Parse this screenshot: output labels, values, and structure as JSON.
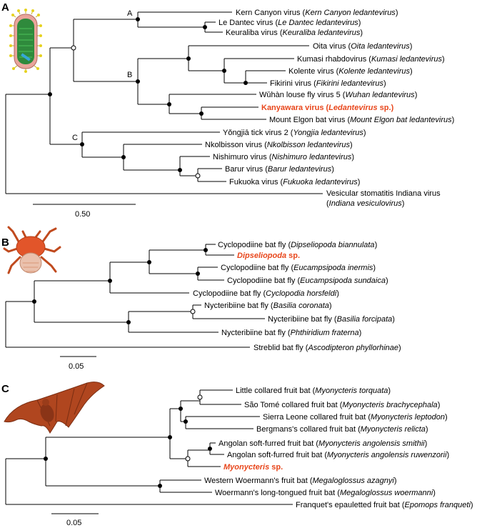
{
  "panels": [
    {
      "letter": "A",
      "illustration": "virion-icon",
      "scale_label": "0.50",
      "node_labels": [
        "A",
        "B",
        "C"
      ],
      "taxa": [
        {
          "common": "Kern Canyon virus",
          "sci": "Kern Canyon ledantevirus"
        },
        {
          "common": "Le Dantec virus",
          "sci": "Le Dantec ledantevirus"
        },
        {
          "common": "Keuraliba virus",
          "sci": "Keuraliba ledantevirus"
        },
        {
          "common": "Oita virus",
          "sci": "Oita ledantevirus"
        },
        {
          "common": "Kumasi rhabdovirus",
          "sci": "Kumasi ledantevirus"
        },
        {
          "common": "Kolente virus",
          "sci": "Kolente ledantevirus"
        },
        {
          "common": "Fikirini virus",
          "sci": "Fikirini ledantevirus"
        },
        {
          "common": "Wǔhàn louse fly virus 5",
          "sci": "Wuhan ledantevirus"
        },
        {
          "red": "Kanyawara virus (",
          "red_italic": "Ledantevirus",
          "red_tail": " sp.)",
          "highlight": true
        },
        {
          "common": "Mount Elgon bat virus",
          "sci": "Mount Elgon bat ledantevirus"
        },
        {
          "common": "Yǒngjiā tick virus 2",
          "sci": "Yongjia ledantevirus"
        },
        {
          "common": "Nkolbisson virus",
          "sci": "Nkolbisson ledantevirus"
        },
        {
          "common": "Nishimuro virus",
          "sci": "Nishimuro ledantevirus"
        },
        {
          "common": "Barur virus",
          "sci": "Barur ledantevirus"
        },
        {
          "common": "Fukuoka virus",
          "sci": "Fukuoka ledantevirus"
        },
        {
          "common": "Vesicular stomatitis Indiana virus",
          "sci": "Indiana vesiculovirus",
          "two_line": true
        }
      ]
    },
    {
      "letter": "B",
      "illustration": "bat-fly-icon",
      "scale_label": "0.05",
      "taxa": [
        {
          "common": "Cyclopodiine bat fly",
          "sci": "Dipseliopoda biannulata"
        },
        {
          "red_italic": "Dipseliopoda",
          "red_tail": " sp.",
          "highlight": true
        },
        {
          "common": "Cyclopodiine bat fly",
          "sci": "Eucampsipoda inermis"
        },
        {
          "common": "Cyclopodiine bat fly",
          "sci": "Eucampsipoda sundaica"
        },
        {
          "common": "Cyclopodiine bat fly",
          "sci": "Cyclopodia horsfeldi"
        },
        {
          "common": "Nycteribiine bat fly",
          "sci": "Basilia coronata"
        },
        {
          "common": "Nycteribiine bat fly",
          "sci": "Basilia forcipata"
        },
        {
          "common": "Nycteribiine bat fly",
          "sci": "Phthiridium fraterna"
        },
        {
          "common": "Streblid bat fly",
          "sci": "Ascodipteron phyllorhinae"
        }
      ]
    },
    {
      "letter": "C",
      "illustration": "fruit-bat-icon",
      "scale_label": "0.05",
      "taxa": [
        {
          "common": "Little collared fruit bat",
          "sci": "Myonycteris torquata"
        },
        {
          "common": "São Tomé collared fruit bat",
          "sci": "Myonycteris brachycephala"
        },
        {
          "common": "Sierra Leone collared fruit bat",
          "sci": "Myonycteris leptodon"
        },
        {
          "common": "Bergmans's collared fruit bat",
          "sci": "Myonycteris relicta"
        },
        {
          "common": "Angolan soft-furred fruit bat",
          "sci": "Myonycteris angolensis smithii"
        },
        {
          "common": "Angolan soft-furred fruit bat",
          "sci": "Myonycteris angolensis ruwenzorii"
        },
        {
          "red_italic": "Myonycteris",
          "red_tail": " sp.",
          "highlight": true
        },
        {
          "common": "Western Woermann's fruit bat",
          "sci": "Megaloglossus azagnyi"
        },
        {
          "common": "Woermann's long-tongued fruit bat",
          "sci": "Megaloglossus woermanni"
        },
        {
          "common": "Franquet's epauletted fruit bat",
          "sci": "Epomops franqueti"
        }
      ]
    }
  ],
  "colors": {
    "highlight": "#e8461b",
    "branch": "#000000"
  }
}
